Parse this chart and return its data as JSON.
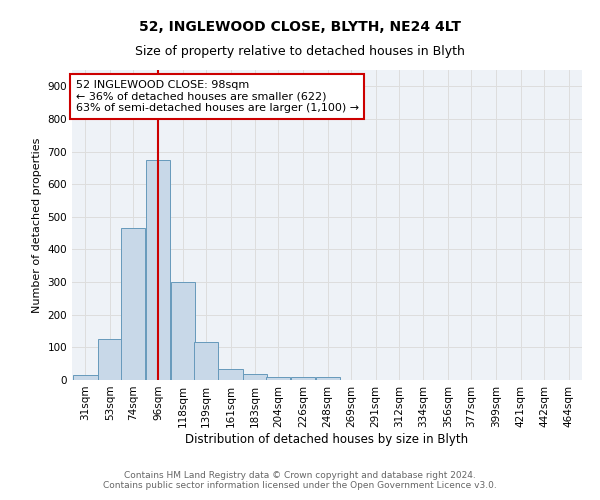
{
  "title1": "52, INGLEWOOD CLOSE, BLYTH, NE24 4LT",
  "title2": "Size of property relative to detached houses in Blyth",
  "xlabel": "Distribution of detached houses by size in Blyth",
  "ylabel": "Number of detached properties",
  "bin_labels": [
    "31sqm",
    "53sqm",
    "74sqm",
    "96sqm",
    "118sqm",
    "139sqm",
    "161sqm",
    "183sqm",
    "204sqm",
    "226sqm",
    "248sqm",
    "269sqm",
    "291sqm",
    "312sqm",
    "334sqm",
    "356sqm",
    "377sqm",
    "399sqm",
    "421sqm",
    "442sqm",
    "464sqm"
  ],
  "bar_heights": [
    15,
    125,
    465,
    675,
    300,
    115,
    35,
    18,
    10,
    8,
    10,
    0,
    0,
    0,
    0,
    0,
    0,
    0,
    0,
    0,
    0
  ],
  "bar_color": "#c8d8e8",
  "bar_edge_color": "#6699bb",
  "vline_x_index": 3,
  "vline_color": "#cc0000",
  "annotation_text": "52 INGLEWOOD CLOSE: 98sqm\n← 36% of detached houses are smaller (622)\n63% of semi-detached houses are larger (1,100) →",
  "annotation_box_color": "#ffffff",
  "annotation_box_edge": "#cc0000",
  "ylim": [
    0,
    950
  ],
  "yticks": [
    0,
    100,
    200,
    300,
    400,
    500,
    600,
    700,
    800,
    900
  ],
  "grid_color": "#dddddd",
  "bg_color": "#eef2f7",
  "footer": "Contains HM Land Registry data © Crown copyright and database right 2024.\nContains public sector information licensed under the Open Government Licence v3.0.",
  "title1_fontsize": 10,
  "title2_fontsize": 9,
  "xlabel_fontsize": 8.5,
  "ylabel_fontsize": 8,
  "tick_fontsize": 7.5,
  "annotation_fontsize": 8,
  "footer_fontsize": 6.5
}
